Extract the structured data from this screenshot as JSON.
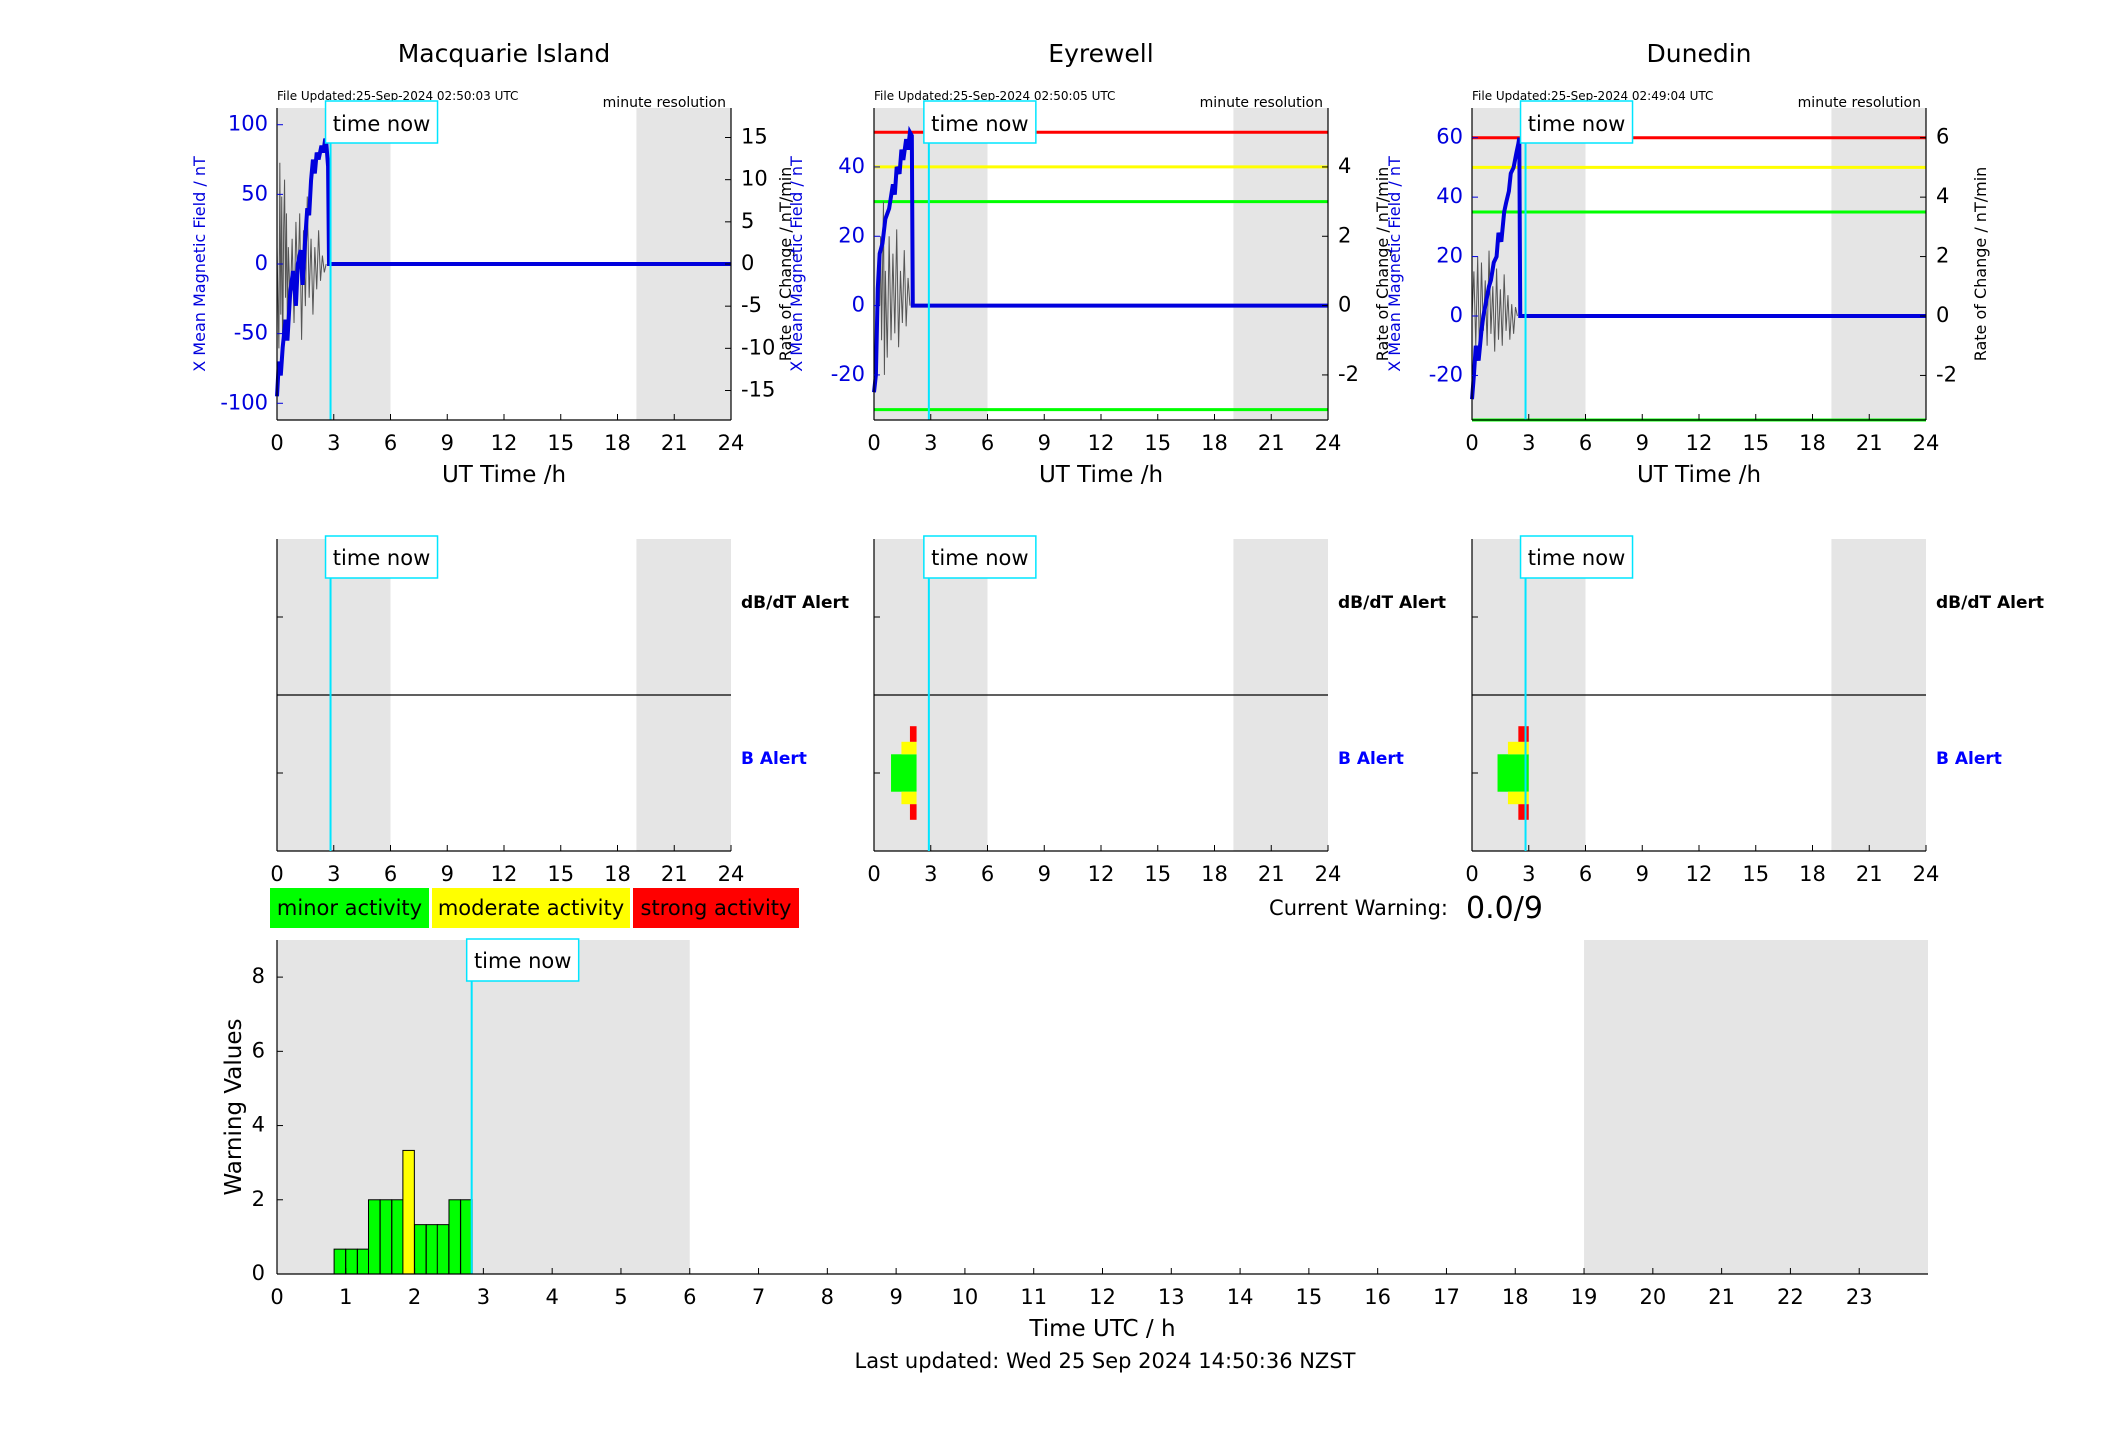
{
  "stations": [
    {
      "id": "macquarie",
      "name": "Macquarie Island",
      "file_updated": "File Updated:25-Sep-2024 02:50:03 UTC",
      "resolution": "minute resolution",
      "time_now_label": "time now",
      "time_now_h": 2.83,
      "shade": [
        [
          0,
          6
        ],
        [
          19,
          24
        ]
      ],
      "x_ticks": [
        0,
        3,
        6,
        9,
        12,
        15,
        18,
        21,
        24
      ],
      "xlabel": "UT Time /h",
      "ylabel_left": "X Mean Magnetic Field / nT",
      "ylabel_right": "Rate of Change / nT/min",
      "ylim_left": [
        -112,
        112
      ],
      "yticks_left": [
        100,
        50,
        0,
        -50,
        -100
      ],
      "ylim_right": [
        -18.5,
        18.5
      ],
      "yticks_right": [
        15,
        10,
        5,
        0,
        -5,
        -10,
        -15
      ],
      "thresholds": [],
      "mean_field": [
        [
          0,
          -95
        ],
        [
          0.1,
          -70
        ],
        [
          0.2,
          -80
        ],
        [
          0.3,
          -60
        ],
        [
          0.45,
          -40
        ],
        [
          0.55,
          -55
        ],
        [
          0.7,
          -20
        ],
        [
          0.85,
          -5
        ],
        [
          1.0,
          -30
        ],
        [
          1.1,
          0
        ],
        [
          1.25,
          10
        ],
        [
          1.35,
          -15
        ],
        [
          1.5,
          20
        ],
        [
          1.6,
          40
        ],
        [
          1.7,
          35
        ],
        [
          1.8,
          60
        ],
        [
          1.9,
          75
        ],
        [
          2.0,
          65
        ],
        [
          2.1,
          80
        ],
        [
          2.2,
          75
        ],
        [
          2.35,
          85
        ],
        [
          2.45,
          80
        ],
        [
          2.55,
          90
        ],
        [
          2.6,
          88
        ],
        [
          2.7,
          70
        ],
        [
          2.75,
          0
        ],
        [
          24,
          0
        ]
      ],
      "rate": [
        [
          0,
          2
        ],
        [
          0.1,
          -10
        ],
        [
          0.15,
          12
        ],
        [
          0.2,
          -6
        ],
        [
          0.25,
          8
        ],
        [
          0.3,
          -12
        ],
        [
          0.35,
          4
        ],
        [
          0.4,
          10
        ],
        [
          0.45,
          -4
        ],
        [
          0.5,
          6
        ],
        [
          0.55,
          -8
        ],
        [
          0.6,
          2
        ],
        [
          0.7,
          -5
        ],
        [
          0.8,
          3
        ],
        [
          0.9,
          -7
        ],
        [
          1.0,
          5
        ],
        [
          1.1,
          -3
        ],
        [
          1.2,
          6
        ],
        [
          1.3,
          -9
        ],
        [
          1.4,
          4
        ],
        [
          1.5,
          -5
        ],
        [
          1.6,
          8
        ],
        [
          1.7,
          -4
        ],
        [
          1.8,
          3
        ],
        [
          1.9,
          -6
        ],
        [
          2.0,
          2
        ],
        [
          2.1,
          -3
        ],
        [
          2.2,
          4
        ],
        [
          2.3,
          -2
        ],
        [
          2.4,
          1
        ],
        [
          2.5,
          -1
        ],
        [
          2.6,
          0
        ]
      ],
      "alert_x_ticks": [
        0,
        3,
        6,
        9,
        12,
        15,
        18,
        21,
        24
      ],
      "db_alert_label": "dB/dT Alert",
      "b_alert_label": "B Alert",
      "b_alert_blocks": []
    },
    {
      "id": "eyrewell",
      "name": "Eyrewell",
      "file_updated": "File Updated:25-Sep-2024 02:50:05 UTC",
      "resolution": "minute resolution",
      "time_now_label": "time now",
      "time_now_h": 2.9,
      "shade": [
        [
          0,
          6
        ],
        [
          19,
          24
        ]
      ],
      "x_ticks": [
        0,
        3,
        6,
        9,
        12,
        15,
        18,
        21,
        24
      ],
      "xlabel": "UT Time /h",
      "ylabel_left": "X Mean Magnetic Field / nT",
      "ylabel_right": "Rate of Change / nT/min",
      "ylim_left": [
        -33,
        57
      ],
      "yticks_left": [
        40,
        20,
        0,
        -20
      ],
      "ylim_right": [
        -3.3,
        5.7
      ],
      "yticks_right": [
        4,
        2,
        0,
        -2
      ],
      "thresholds": [
        {
          "value": 50,
          "color": "#ff0000"
        },
        {
          "value": 40,
          "color": "#ffff00"
        },
        {
          "value": 30,
          "color": "#00ff00"
        },
        {
          "value": -30,
          "color": "#00ff00"
        }
      ],
      "mean_field": [
        [
          0,
          -25
        ],
        [
          0.1,
          -20
        ],
        [
          0.2,
          5
        ],
        [
          0.3,
          15
        ],
        [
          0.45,
          18
        ],
        [
          0.6,
          25
        ],
        [
          0.8,
          28
        ],
        [
          1.0,
          35
        ],
        [
          1.1,
          32
        ],
        [
          1.2,
          40
        ],
        [
          1.35,
          38
        ],
        [
          1.45,
          45
        ],
        [
          1.55,
          42
        ],
        [
          1.7,
          48
        ],
        [
          1.8,
          45
        ],
        [
          1.9,
          50
        ],
        [
          2.0,
          49
        ],
        [
          2.05,
          0
        ],
        [
          24,
          0
        ]
      ],
      "rate": [
        [
          0.3,
          0
        ],
        [
          0.35,
          2
        ],
        [
          0.4,
          -1
        ],
        [
          0.5,
          3
        ],
        [
          0.55,
          -2
        ],
        [
          0.6,
          1
        ],
        [
          0.7,
          -1.5
        ],
        [
          0.8,
          2
        ],
        [
          0.9,
          -1
        ],
        [
          1.0,
          1.5
        ],
        [
          1.1,
          -0.8
        ],
        [
          1.2,
          2.2
        ],
        [
          1.3,
          -1.2
        ],
        [
          1.4,
          1
        ],
        [
          1.5,
          -0.5
        ],
        [
          1.6,
          1.6
        ],
        [
          1.7,
          -0.6
        ],
        [
          1.8,
          0.8
        ],
        [
          1.9,
          0
        ]
      ],
      "alert_x_ticks": [
        0,
        3,
        6,
        9,
        12,
        15,
        18,
        21,
        24
      ],
      "db_alert_label": "dB/dT Alert",
      "b_alert_label": "B Alert",
      "b_alert_blocks": [
        {
          "x0": 0.9,
          "x1": 2.25,
          "y0": 0.38,
          "y1": 0.62,
          "color": "#00ff00"
        },
        {
          "x0": 1.45,
          "x1": 2.25,
          "y0": 0.3,
          "y1": 0.38,
          "color": "#ffff00"
        },
        {
          "x0": 1.45,
          "x1": 2.25,
          "y0": 0.62,
          "y1": 0.7,
          "color": "#ffff00"
        },
        {
          "x0": 1.9,
          "x1": 2.25,
          "y0": 0.2,
          "y1": 0.3,
          "color": "#ff0000"
        },
        {
          "x0": 1.9,
          "x1": 2.25,
          "y0": 0.7,
          "y1": 0.8,
          "color": "#ff0000"
        }
      ]
    },
    {
      "id": "dunedin",
      "name": "Dunedin",
      "file_updated": "File Updated:25-Sep-2024 02:49:04 UTC",
      "resolution": "minute resolution",
      "time_now_label": "time now",
      "time_now_h": 2.83,
      "shade": [
        [
          0,
          6
        ],
        [
          19,
          24
        ]
      ],
      "x_ticks": [
        0,
        3,
        6,
        9,
        12,
        15,
        18,
        21,
        24
      ],
      "xlabel": "UT Time /h",
      "ylabel_left": "X Mean Magnetic Field / nT",
      "ylabel_right": "Rate of Change / nT/min",
      "ylim_left": [
        -35,
        70
      ],
      "yticks_left": [
        60,
        40,
        20,
        0,
        -20
      ],
      "ylim_right": [
        -3.5,
        7.0
      ],
      "yticks_right": [
        6,
        4,
        2,
        0,
        -2
      ],
      "thresholds": [
        {
          "value": 60,
          "color": "#ff0000"
        },
        {
          "value": 50,
          "color": "#ffff00"
        },
        {
          "value": 35,
          "color": "#00ff00"
        },
        {
          "value": -35,
          "color": "#00ff00"
        }
      ],
      "mean_field": [
        [
          0,
          -28
        ],
        [
          0.1,
          -20
        ],
        [
          0.2,
          -10
        ],
        [
          0.35,
          -15
        ],
        [
          0.5,
          -5
        ],
        [
          0.6,
          0
        ],
        [
          0.75,
          5
        ],
        [
          0.9,
          10
        ],
        [
          1.0,
          12
        ],
        [
          1.15,
          18
        ],
        [
          1.3,
          20
        ],
        [
          1.4,
          28
        ],
        [
          1.55,
          25
        ],
        [
          1.7,
          35
        ],
        [
          1.8,
          38
        ],
        [
          1.95,
          42
        ],
        [
          2.05,
          48
        ],
        [
          2.2,
          50
        ],
        [
          2.35,
          55
        ],
        [
          2.45,
          58
        ],
        [
          2.5,
          60
        ],
        [
          2.55,
          0
        ],
        [
          24,
          0
        ]
      ],
      "rate": [
        [
          0,
          0
        ],
        [
          0.1,
          1.5
        ],
        [
          0.2,
          -1
        ],
        [
          0.3,
          2
        ],
        [
          0.4,
          -1.5
        ],
        [
          0.5,
          1.8
        ],
        [
          0.6,
          -0.5
        ],
        [
          0.7,
          1.2
        ],
        [
          0.8,
          -1
        ],
        [
          0.9,
          2.2
        ],
        [
          1.0,
          -0.6
        ],
        [
          1.1,
          1
        ],
        [
          1.2,
          -1.2
        ],
        [
          1.3,
          1.6
        ],
        [
          1.4,
          -0.8
        ],
        [
          1.5,
          0.9
        ],
        [
          1.6,
          -1
        ],
        [
          1.7,
          1.4
        ],
        [
          1.8,
          -0.5
        ],
        [
          1.9,
          0.7
        ],
        [
          2.0,
          -0.8
        ],
        [
          2.1,
          0.4
        ],
        [
          2.2,
          -0.6
        ],
        [
          2.3,
          0.3
        ],
        [
          2.4,
          0
        ]
      ],
      "alert_x_ticks": [
        0,
        3,
        6,
        9,
        12,
        15,
        18,
        21,
        24
      ],
      "db_alert_label": "dB/dT Alert",
      "b_alert_label": "B Alert",
      "b_alert_blocks": [
        {
          "x0": 1.35,
          "x1": 3.0,
          "y0": 0.38,
          "y1": 0.62,
          "color": "#00ff00"
        },
        {
          "x0": 1.9,
          "x1": 3.0,
          "y0": 0.3,
          "y1": 0.38,
          "color": "#ffff00"
        },
        {
          "x0": 1.9,
          "x1": 3.0,
          "y0": 0.62,
          "y1": 0.7,
          "color": "#ffff00"
        },
        {
          "x0": 2.45,
          "x1": 3.0,
          "y0": 0.2,
          "y1": 0.3,
          "color": "#ff0000"
        },
        {
          "x0": 2.45,
          "x1": 3.0,
          "y0": 0.7,
          "y1": 0.8,
          "color": "#ff0000"
        }
      ]
    }
  ],
  "legend": [
    {
      "label": "minor activity",
      "color": "#00ff00"
    },
    {
      "label": "moderate activity",
      "color": "#ffff00"
    },
    {
      "label": "strong activity",
      "color": "#ff0000"
    }
  ],
  "current_warning": {
    "label": "Current Warning:",
    "value": "0.0/9"
  },
  "chart_data": {
    "type": "bar",
    "xlabel": "Time UTC / h",
    "ylabel": "Warning Values",
    "xlim": [
      0,
      24
    ],
    "ylim": [
      0,
      9
    ],
    "x_ticks": [
      0,
      1,
      2,
      3,
      4,
      5,
      6,
      7,
      8,
      9,
      10,
      11,
      12,
      13,
      14,
      15,
      16,
      17,
      18,
      19,
      20,
      21,
      22,
      23
    ],
    "y_ticks": [
      0,
      2,
      4,
      6,
      8
    ],
    "shade": [
      [
        0,
        6
      ],
      [
        19,
        24
      ]
    ],
    "time_now_label": "time now",
    "time_now_h": 2.83,
    "bin_width_h": 0.1667,
    "bars": [
      {
        "x": 0.83,
        "value": 0.67,
        "color": "#00ff00"
      },
      {
        "x": 1.0,
        "value": 0.67,
        "color": "#00ff00"
      },
      {
        "x": 1.17,
        "value": 0.67,
        "color": "#00ff00"
      },
      {
        "x": 1.33,
        "value": 2.0,
        "color": "#00ff00"
      },
      {
        "x": 1.5,
        "value": 2.0,
        "color": "#00ff00"
      },
      {
        "x": 1.67,
        "value": 2.0,
        "color": "#00ff00"
      },
      {
        "x": 1.83,
        "value": 3.33,
        "color": "#ffff00"
      },
      {
        "x": 2.0,
        "value": 1.33,
        "color": "#00ff00"
      },
      {
        "x": 2.17,
        "value": 1.33,
        "color": "#00ff00"
      },
      {
        "x": 2.33,
        "value": 1.33,
        "color": "#00ff00"
      },
      {
        "x": 2.5,
        "value": 2.0,
        "color": "#00ff00"
      },
      {
        "x": 2.67,
        "value": 2.0,
        "color": "#00ff00"
      }
    ]
  },
  "footer": {
    "last_updated": "Last updated: Wed 25 Sep 2024 14:50:36 NZST"
  }
}
